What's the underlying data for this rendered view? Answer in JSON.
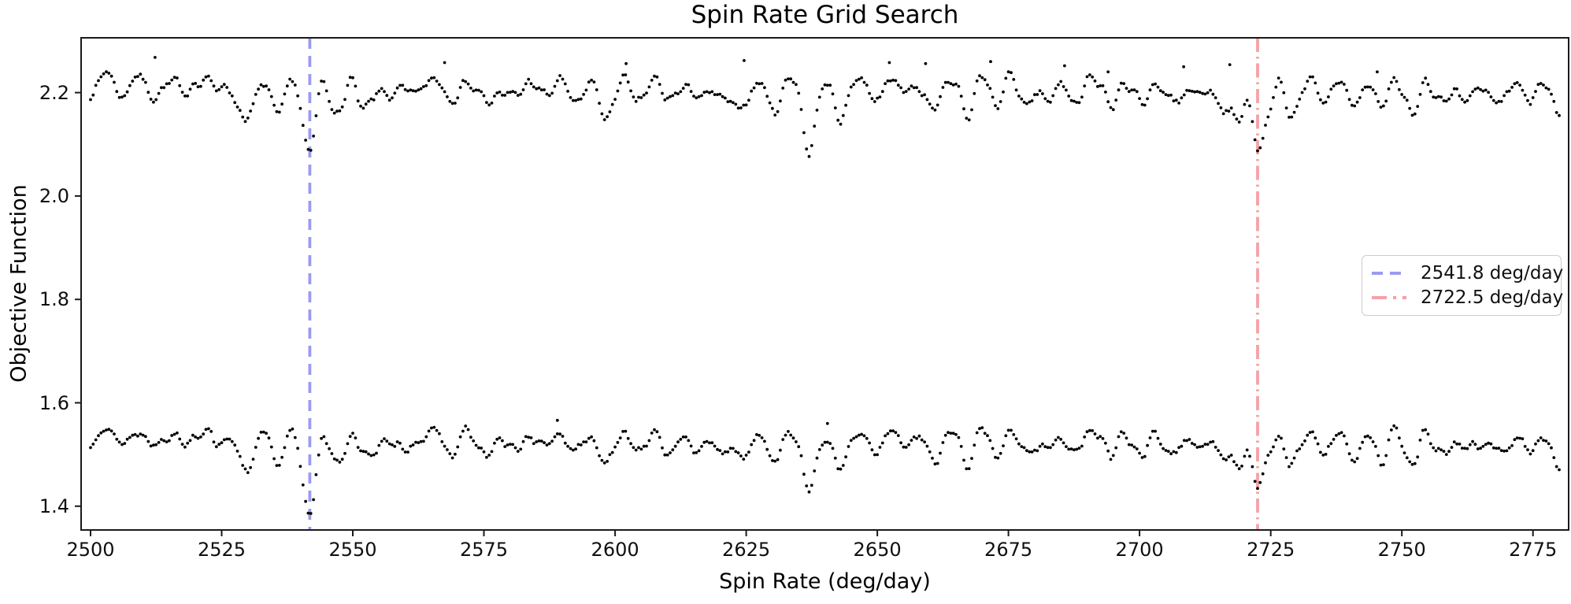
{
  "chart_data": {
    "type": "scatter",
    "title": "Spin Rate Grid Search",
    "xlabel": "Spin Rate (deg/day)",
    "ylabel": "Objective Function",
    "xlim": [
      2498.2,
      2781.8
    ],
    "ylim": [
      1.354,
      2.306
    ],
    "x_ticks": [
      2500,
      2525,
      2550,
      2575,
      2600,
      2625,
      2650,
      2675,
      2700,
      2725,
      2750,
      2775
    ],
    "y_ticks": [
      "1.4",
      "1.6",
      "1.8",
      "2.0",
      "2.2"
    ],
    "grid": false,
    "x_start": 2500,
    "x_end": 2780,
    "x_step": 0.5,
    "marker": {
      "color": "#000000",
      "radius": 1.9
    },
    "series": [
      {
        "name": "objective-scan-upper",
        "baseline": 2.213,
        "osc_scale": 1.0,
        "noise": 0.007,
        "seed": 7,
        "outliers": [
          [
            2512.3,
            2.268
          ],
          [
            2567.5,
            2.258
          ],
          [
            2602.1,
            2.256
          ],
          [
            2624.6,
            2.262
          ],
          [
            2652.3,
            2.258
          ],
          [
            2659.2,
            2.256
          ],
          [
            2671.6,
            2.26
          ],
          [
            2685.7,
            2.252
          ],
          [
            2694.0,
            2.24
          ],
          [
            2708.4,
            2.25
          ],
          [
            2717.2,
            2.254
          ],
          [
            2745.3,
            2.24
          ]
        ]
      },
      {
        "name": "objective-scan-lower",
        "baseline": 1.532,
        "osc_scale": 0.9,
        "noise": 0.007,
        "seed": 13,
        "outliers": [
          [
            2589.0,
            1.566
          ],
          [
            2640.5,
            1.56
          ]
        ]
      }
    ],
    "dips": [
      {
        "x": 2529,
        "w": 1.5,
        "depths": [
          0.062,
          0.052
        ]
      },
      {
        "x": 2535.5,
        "w": 1.0,
        "depths": [
          0.034,
          0.03
        ]
      },
      {
        "x": 2541.8,
        "w": 1.3,
        "depths": [
          0.112,
          0.132
        ]
      },
      {
        "x": 2547.5,
        "w": 1.2,
        "depths": [
          0.05,
          0.046
        ]
      },
      {
        "x": 2553.5,
        "w": 1.1,
        "depths": [
          0.04,
          0.036
        ]
      },
      {
        "x": 2560,
        "w": 1.0,
        "depths": [
          0.02,
          0.03
        ]
      },
      {
        "x": 2569,
        "w": 1.1,
        "depths": [
          0.028,
          0.026
        ]
      },
      {
        "x": 2577,
        "w": 1.2,
        "depths": [
          0.034,
          0.03
        ]
      },
      {
        "x": 2584,
        "w": 1.0,
        "depths": [
          0.022,
          0.028
        ]
      },
      {
        "x": 2591,
        "w": 1.1,
        "depths": [
          0.026,
          0.024
        ]
      },
      {
        "x": 2598,
        "w": 1.3,
        "depths": [
          0.044,
          0.038
        ]
      },
      {
        "x": 2605,
        "w": 1.0,
        "depths": [
          0.026,
          0.024
        ]
      },
      {
        "x": 2611,
        "w": 1.1,
        "depths": [
          0.03,
          0.034
        ]
      },
      {
        "x": 2617,
        "w": 1.0,
        "depths": [
          0.024,
          0.026
        ]
      },
      {
        "x": 2623,
        "w": 1.3,
        "depths": [
          0.054,
          0.048
        ]
      },
      {
        "x": 2629.5,
        "w": 1.2,
        "depths": [
          0.044,
          0.044
        ]
      },
      {
        "x": 2637,
        "w": 1.3,
        "depths": [
          0.098,
          0.082
        ]
      },
      {
        "x": 2643,
        "w": 1.2,
        "depths": [
          0.044,
          0.048
        ]
      },
      {
        "x": 2650,
        "w": 1.0,
        "depths": [
          0.024,
          0.026
        ]
      },
      {
        "x": 2660,
        "w": 1.2,
        "depths": [
          0.034,
          0.03
        ]
      },
      {
        "x": 2667.3,
        "w": 1.2,
        "depths": [
          0.042,
          0.034
        ]
      },
      {
        "x": 2673,
        "w": 1.0,
        "depths": [
          0.024,
          0.026
        ]
      },
      {
        "x": 2680,
        "w": 1.2,
        "depths": [
          0.036,
          0.03
        ]
      },
      {
        "x": 2687,
        "w": 1.1,
        "depths": [
          0.03,
          0.028
        ]
      },
      {
        "x": 2695,
        "w": 1.1,
        "depths": [
          0.036,
          0.03
        ]
      },
      {
        "x": 2701,
        "w": 1.0,
        "depths": [
          0.028,
          0.026
        ]
      },
      {
        "x": 2708,
        "w": 1.2,
        "depths": [
          0.04,
          0.036
        ]
      },
      {
        "x": 2715.3,
        "w": 1.2,
        "depths": [
          0.064,
          0.052
        ]
      },
      {
        "x": 2719,
        "w": 1.1,
        "depths": [
          0.048,
          0.044
        ]
      },
      {
        "x": 2722.5,
        "w": 1.3,
        "depths": [
          0.112,
          0.082
        ]
      },
      {
        "x": 2728.8,
        "w": 1.2,
        "depths": [
          0.052,
          0.046
        ]
      },
      {
        "x": 2735,
        "w": 1.0,
        "depths": [
          0.026,
          0.028
        ]
      },
      {
        "x": 2741,
        "w": 1.1,
        "depths": [
          0.03,
          0.03
        ]
      },
      {
        "x": 2746,
        "w": 1.0,
        "depths": [
          0.024,
          0.024
        ]
      },
      {
        "x": 2752.4,
        "w": 1.3,
        "depths": [
          0.048,
          0.044
        ]
      },
      {
        "x": 2758.9,
        "w": 1.2,
        "depths": [
          0.046,
          0.04
        ]
      },
      {
        "x": 2765,
        "w": 1.0,
        "depths": [
          0.026,
          0.026
        ]
      },
      {
        "x": 2770,
        "w": 1.1,
        "depths": [
          0.028,
          0.028
        ]
      },
      {
        "x": 2775,
        "w": 1.0,
        "depths": [
          0.024,
          0.026
        ]
      },
      {
        "x": 2779.5,
        "w": 1.2,
        "depths": [
          0.042,
          0.048
        ]
      }
    ],
    "vlines": [
      {
        "x": 2541.8,
        "label": "2541.8 deg/day",
        "color": "#9b9bf0",
        "style": "dashed",
        "dash": "14 9",
        "width": 3.8,
        "legend_dash": "14 9"
      },
      {
        "x": 2722.5,
        "label": "2722.5 deg/day",
        "color": "#f5a1a6",
        "style": "dashdot",
        "dash": "18 6 2.5 6",
        "width": 3.8,
        "legend_dash": "19 8 4 8"
      }
    ],
    "legend": {
      "position": "center-right"
    },
    "axis_color": "#1a1a1a"
  }
}
